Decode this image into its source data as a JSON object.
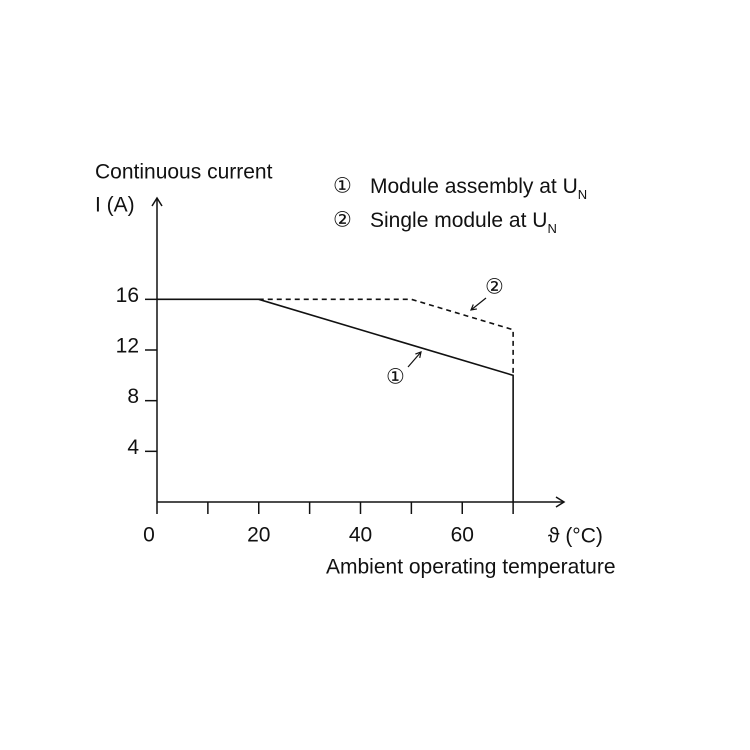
{
  "chart_data": {
    "type": "line",
    "y_label": [
      "Continuous current",
      "I (A)"
    ],
    "x_symbol": "ϑ (°C)",
    "x_label": "Ambient operating temperature",
    "xlim": [
      0,
      80
    ],
    "ylim": [
      0,
      24
    ],
    "xticks": [
      0,
      20,
      40,
      60
    ],
    "x_minor_ticks": [
      10,
      30,
      50,
      70
    ],
    "yticks": [
      4,
      8,
      12,
      16
    ],
    "grid": false,
    "series": [
      {
        "name": "Module assembly at U",
        "subscript": "N",
        "marker": "①",
        "color": "#111111",
        "style": "solid",
        "x": [
          0,
          20,
          70,
          70
        ],
        "values": [
          16,
          16,
          10,
          0
        ]
      },
      {
        "name": "Single module at U",
        "subscript": "N",
        "marker": "②",
        "color": "#111111",
        "style": "dashed",
        "x": [
          20,
          50,
          70,
          70
        ],
        "values": [
          16,
          16,
          13.6,
          10
        ]
      }
    ]
  }
}
